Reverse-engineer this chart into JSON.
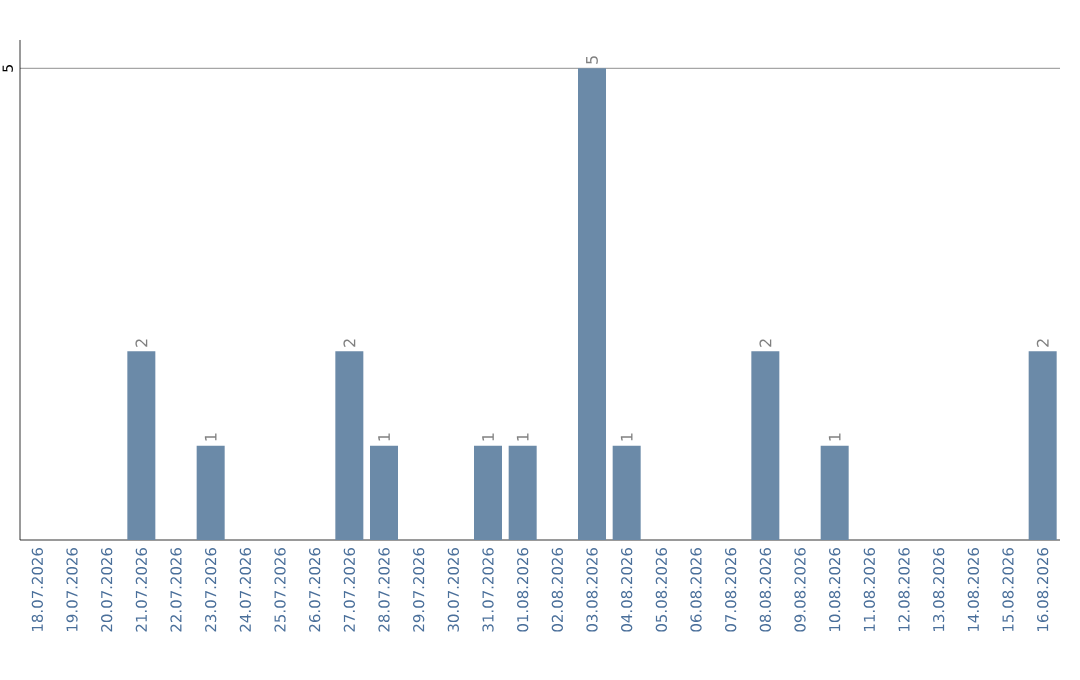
{
  "chart_data": {
    "type": "bar",
    "categories": [
      "18.07.2026",
      "19.07.2026",
      "20.07.2026",
      "21.07.2026",
      "22.07.2026",
      "23.07.2026",
      "24.07.2026",
      "25.07.2026",
      "26.07.2026",
      "27.07.2026",
      "28.07.2026",
      "29.07.2026",
      "30.07.2026",
      "31.07.2026",
      "01.08.2026",
      "02.08.2026",
      "03.08.2026",
      "04.08.2026",
      "05.08.2026",
      "06.08.2026",
      "07.08.2026",
      "08.08.2026",
      "09.08.2026",
      "10.08.2026",
      "11.08.2026",
      "12.08.2026",
      "13.08.2026",
      "14.08.2026",
      "15.08.2026",
      "16.08.2026"
    ],
    "values": [
      0,
      0,
      0,
      2,
      0,
      1,
      0,
      0,
      0,
      2,
      1,
      0,
      0,
      1,
      1,
      0,
      5,
      1,
      0,
      0,
      0,
      2,
      0,
      1,
      0,
      0,
      0,
      0,
      0,
      2
    ],
    "value_labels": [
      null,
      null,
      null,
      "2",
      null,
      "1",
      null,
      null,
      null,
      "2",
      "1",
      null,
      null,
      "1",
      "1",
      null,
      "5",
      "1",
      null,
      null,
      null,
      "2",
      null,
      "1",
      null,
      null,
      null,
      null,
      null,
      "2"
    ],
    "color": "#6b8aa8",
    "ylim": [
      0,
      5.3
    ],
    "yticks": [
      5
    ],
    "grid": "y"
  }
}
